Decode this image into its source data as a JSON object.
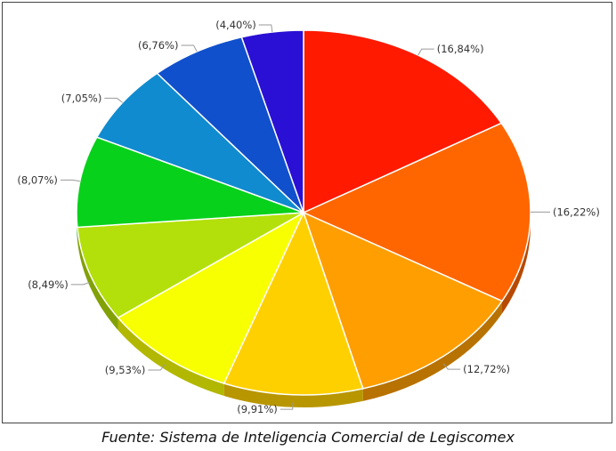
{
  "chart_data": {
    "type": "pie",
    "title": "",
    "slices": [
      {
        "label": "(16,84%)",
        "value": 16.84,
        "color": "#FF1A00"
      },
      {
        "label": "(16,22%)",
        "value": 16.22,
        "color": "#FF6600"
      },
      {
        "label": "(12,72%)",
        "value": 12.72,
        "color": "#FF9E00"
      },
      {
        "label": "(9,91%)",
        "value": 9.91,
        "color": "#FFD000"
      },
      {
        "label": "(9,53%)",
        "value": 9.53,
        "color": "#F7FF00"
      },
      {
        "label": "(8,49%)",
        "value": 8.49,
        "color": "#B3E00A"
      },
      {
        "label": "(8,07%)",
        "value": 8.07,
        "color": "#08D11B"
      },
      {
        "label": "(7,05%)",
        "value": 7.05,
        "color": "#108BCF"
      },
      {
        "label": "(6,76%)",
        "value": 6.76,
        "color": "#1150CC"
      },
      {
        "label": "(4,40%)",
        "value": 4.4,
        "color": "#2A10D4"
      }
    ],
    "legend": "none"
  },
  "caption": "Fuente: Sistema de Inteligencia Comercial de Legiscomex"
}
